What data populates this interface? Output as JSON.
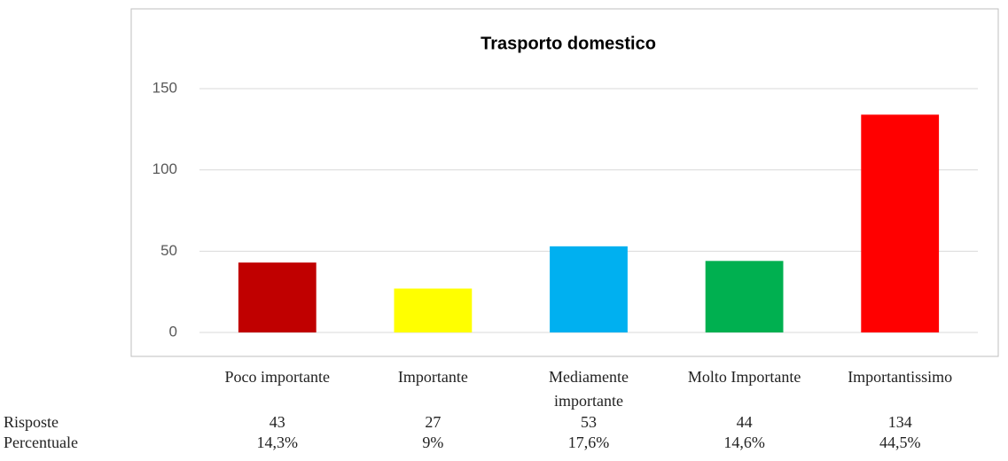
{
  "chart_data": {
    "type": "bar",
    "title": "Trasporto domestico",
    "categories": [
      "Poco importante",
      "Importante",
      "Mediamente importante",
      "Molto Importante",
      "Importantissimo"
    ],
    "values": [
      43,
      27,
      53,
      44,
      134
    ],
    "colors": [
      "#c00000",
      "#ffff00",
      "#00b0f0",
      "#00b050",
      "#ff0000"
    ],
    "ylim": [
      0,
      150
    ],
    "yticks": [
      0,
      50,
      100,
      150
    ],
    "grid": true
  },
  "table": {
    "row_labels": [
      "Risposte",
      "Percentuale"
    ],
    "percentuale": [
      "14,3%",
      "9%",
      "17,6%",
      "14,6%",
      "44,5%"
    ]
  }
}
